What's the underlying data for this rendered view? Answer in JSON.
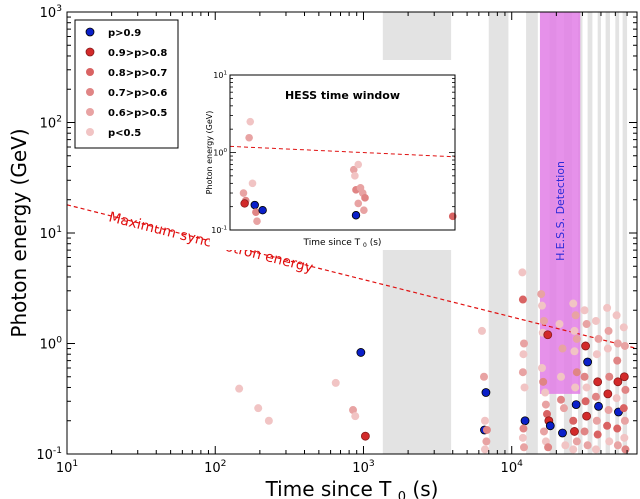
{
  "chart_data": {
    "type": "scatter",
    "xlabel": "Time since T",
    "xlabel_sub": "0",
    "xlabel_unit": "(s)",
    "ylabel": "Photon energy (GeV)",
    "xscale": "log",
    "yscale": "log",
    "xlim": [
      10,
      70000
    ],
    "ylim": [
      0.1,
      1000
    ],
    "x_ticks": [
      {
        "base": "10",
        "exp": "1"
      },
      {
        "base": "10",
        "exp": "2"
      },
      {
        "base": "10",
        "exp": "3"
      },
      {
        "base": "10",
        "exp": "4"
      }
    ],
    "y_ticks": [
      {
        "base": "10",
        "exp": "-1"
      },
      {
        "base": "10",
        "exp": "0"
      },
      {
        "base": "10",
        "exp": "1"
      },
      {
        "base": "10",
        "exp": "2"
      },
      {
        "base": "10",
        "exp": "3"
      }
    ],
    "legend": {
      "position": "top-left",
      "entries": [
        {
          "label": "p>0.9",
          "color": "#0a1fc9"
        },
        {
          "label": "0.9>p>0.8",
          "color": "#d22a2a"
        },
        {
          "label": "0.8>p>0.7",
          "color": "#d96363"
        },
        {
          "label": "0.7>p>0.6",
          "color": "#e08585"
        },
        {
          "label": "0.6>p>0.5",
          "color": "#e8a3a3"
        },
        {
          "label": "p<0.5",
          "color": "#f1c4c4"
        }
      ]
    },
    "max_sync_line": {
      "label": "Maximum synchrotron energy",
      "color": "#e01010",
      "points": [
        [
          10,
          18
        ],
        [
          70000,
          0.9
        ]
      ]
    },
    "shaded_windows": [
      [
        1350,
        3900
      ],
      [
        7000,
        9500
      ],
      [
        12500,
        15000
      ],
      [
        18000,
        20000
      ],
      [
        22500,
        25500
      ],
      [
        28000,
        30000
      ],
      [
        32500,
        35000
      ],
      [
        38000,
        40000
      ],
      [
        43000,
        46000
      ],
      [
        50000,
        53000
      ],
      [
        56000,
        60000
      ]
    ],
    "hess_detection": {
      "label": "H.E.S.S. Detection",
      "x_range": [
        15500,
        29000
      ],
      "y_range": [
        0.35,
        1000
      ],
      "color": "#e27ee6"
    },
    "points": [
      {
        "x": 145,
        "y": 0.39,
        "c": 5
      },
      {
        "x": 195,
        "y": 0.26,
        "c": 5
      },
      {
        "x": 230,
        "y": 0.2,
        "c": 5
      },
      {
        "x": 650,
        "y": 0.44,
        "c": 5
      },
      {
        "x": 850,
        "y": 0.25,
        "c": 4
      },
      {
        "x": 880,
        "y": 0.22,
        "c": 5
      },
      {
        "x": 960,
        "y": 0.83,
        "c": 0
      },
      {
        "x": 1030,
        "y": 0.145,
        "c": 1
      },
      {
        "x": 6300,
        "y": 1.3,
        "c": 5
      },
      {
        "x": 6500,
        "y": 0.5,
        "c": 4
      },
      {
        "x": 6700,
        "y": 0.36,
        "c": 0
      },
      {
        "x": 6600,
        "y": 0.2,
        "c": 5
      },
      {
        "x": 6550,
        "y": 0.165,
        "c": 0
      },
      {
        "x": 6800,
        "y": 0.165,
        "c": 3
      },
      {
        "x": 6750,
        "y": 0.13,
        "c": 4
      },
      {
        "x": 6600,
        "y": 0.11,
        "c": 5
      },
      {
        "x": 11800,
        "y": 4.4,
        "c": 5
      },
      {
        "x": 11900,
        "y": 2.5,
        "c": 2
      },
      {
        "x": 12100,
        "y": 1.0,
        "c": 4
      },
      {
        "x": 12000,
        "y": 0.8,
        "c": 5
      },
      {
        "x": 11900,
        "y": 0.55,
        "c": 4
      },
      {
        "x": 12200,
        "y": 0.4,
        "c": 5
      },
      {
        "x": 12300,
        "y": 0.2,
        "c": 0
      },
      {
        "x": 12000,
        "y": 0.17,
        "c": 3
      },
      {
        "x": 11900,
        "y": 0.14,
        "c": 5
      },
      {
        "x": 12100,
        "y": 0.115,
        "c": 4
      },
      {
        "x": 15800,
        "y": 2.8,
        "c": 4
      },
      {
        "x": 16000,
        "y": 2.2,
        "c": 5
      },
      {
        "x": 16500,
        "y": 1.6,
        "c": 4
      },
      {
        "x": 16200,
        "y": 1.25,
        "c": 5
      },
      {
        "x": 17500,
        "y": 1.2,
        "c": 1
      },
      {
        "x": 16000,
        "y": 0.6,
        "c": 5
      },
      {
        "x": 16300,
        "y": 0.45,
        "c": 3
      },
      {
        "x": 16800,
        "y": 0.36,
        "c": 5
      },
      {
        "x": 17000,
        "y": 0.28,
        "c": 4
      },
      {
        "x": 17300,
        "y": 0.23,
        "c": 2
      },
      {
        "x": 17800,
        "y": 0.2,
        "c": 1
      },
      {
        "x": 18200,
        "y": 0.18,
        "c": 0
      },
      {
        "x": 16500,
        "y": 0.16,
        "c": 4
      },
      {
        "x": 17000,
        "y": 0.13,
        "c": 5
      },
      {
        "x": 17600,
        "y": 0.115,
        "c": 3
      },
      {
        "x": 21000,
        "y": 1.5,
        "c": 5
      },
      {
        "x": 22000,
        "y": 0.9,
        "c": 4
      },
      {
        "x": 21500,
        "y": 0.5,
        "c": 5
      },
      {
        "x": 21500,
        "y": 0.31,
        "c": 3
      },
      {
        "x": 22500,
        "y": 0.26,
        "c": 4
      },
      {
        "x": 22000,
        "y": 0.155,
        "c": 0
      },
      {
        "x": 23000,
        "y": 0.12,
        "c": 5
      },
      {
        "x": 26000,
        "y": 2.3,
        "c": 5
      },
      {
        "x": 27000,
        "y": 1.8,
        "c": 4
      },
      {
        "x": 26500,
        "y": 1.3,
        "c": 5
      },
      {
        "x": 27500,
        "y": 1.1,
        "c": 4
      },
      {
        "x": 26500,
        "y": 0.85,
        "c": 5
      },
      {
        "x": 27500,
        "y": 0.55,
        "c": 3
      },
      {
        "x": 26800,
        "y": 0.4,
        "c": 5
      },
      {
        "x": 27200,
        "y": 0.28,
        "c": 0
      },
      {
        "x": 26000,
        "y": 0.2,
        "c": 2
      },
      {
        "x": 26500,
        "y": 0.16,
        "c": 1
      },
      {
        "x": 27500,
        "y": 0.13,
        "c": 4
      },
      {
        "x": 26000,
        "y": 0.11,
        "c": 5
      },
      {
        "x": 31000,
        "y": 2.0,
        "c": 5
      },
      {
        "x": 32000,
        "y": 1.5,
        "c": 4
      },
      {
        "x": 31500,
        "y": 0.95,
        "c": 1
      },
      {
        "x": 32500,
        "y": 0.68,
        "c": 0
      },
      {
        "x": 31000,
        "y": 0.5,
        "c": 3
      },
      {
        "x": 32000,
        "y": 0.4,
        "c": 5
      },
      {
        "x": 31500,
        "y": 0.3,
        "c": 2
      },
      {
        "x": 32000,
        "y": 0.22,
        "c": 1
      },
      {
        "x": 31000,
        "y": 0.16,
        "c": 3
      },
      {
        "x": 32500,
        "y": 0.12,
        "c": 4
      },
      {
        "x": 37000,
        "y": 1.6,
        "c": 5
      },
      {
        "x": 38500,
        "y": 1.1,
        "c": 4
      },
      {
        "x": 37500,
        "y": 0.8,
        "c": 5
      },
      {
        "x": 38000,
        "y": 0.45,
        "c": 1
      },
      {
        "x": 37000,
        "y": 0.33,
        "c": 3
      },
      {
        "x": 38500,
        "y": 0.27,
        "c": 0
      },
      {
        "x": 37500,
        "y": 0.2,
        "c": 4
      },
      {
        "x": 38000,
        "y": 0.15,
        "c": 2
      },
      {
        "x": 37000,
        "y": 0.11,
        "c": 5
      },
      {
        "x": 44000,
        "y": 2.1,
        "c": 5
      },
      {
        "x": 45000,
        "y": 1.3,
        "c": 4
      },
      {
        "x": 44500,
        "y": 0.9,
        "c": 5
      },
      {
        "x": 45500,
        "y": 0.5,
        "c": 3
      },
      {
        "x": 44500,
        "y": 0.35,
        "c": 1
      },
      {
        "x": 45000,
        "y": 0.25,
        "c": 4
      },
      {
        "x": 44000,
        "y": 0.18,
        "c": 2
      },
      {
        "x": 45500,
        "y": 0.13,
        "c": 5
      },
      {
        "x": 51000,
        "y": 1.8,
        "c": 5
      },
      {
        "x": 52000,
        "y": 1.0,
        "c": 4
      },
      {
        "x": 51500,
        "y": 0.7,
        "c": 3
      },
      {
        "x": 52000,
        "y": 0.45,
        "c": 1
      },
      {
        "x": 51000,
        "y": 0.32,
        "c": 5
      },
      {
        "x": 52500,
        "y": 0.24,
        "c": 0
      },
      {
        "x": 51500,
        "y": 0.17,
        "c": 2
      },
      {
        "x": 52000,
        "y": 0.12,
        "c": 4
      },
      {
        "x": 57000,
        "y": 1.4,
        "c": 5
      },
      {
        "x": 58000,
        "y": 0.95,
        "c": 4
      },
      {
        "x": 57500,
        "y": 0.5,
        "c": 1
      },
      {
        "x": 58500,
        "y": 0.38,
        "c": 3
      },
      {
        "x": 57000,
        "y": 0.26,
        "c": 2
      },
      {
        "x": 58000,
        "y": 0.2,
        "c": 4
      },
      {
        "x": 57500,
        "y": 0.14,
        "c": 5
      },
      {
        "x": 58500,
        "y": 0.11,
        "c": 3
      }
    ],
    "inset": {
      "title": "HESS time window",
      "xlabel": "Time since T",
      "xlabel_sub": "0",
      "xlabel_unit": "(s)",
      "ylabel": "Photon energy (GeV)",
      "xscale": "linear",
      "yscale": "log",
      "xlim": [
        0,
        100
      ],
      "ylim": [
        0.1,
        10
      ],
      "y_ticks": [
        {
          "base": "10",
          "exp": "-1"
        },
        {
          "base": "10",
          "exp": "0"
        },
        {
          "base": "10",
          "exp": "1"
        }
      ],
      "max_sync_line": {
        "points": [
          [
            0,
            1.2
          ],
          [
            100,
            0.88
          ]
        ]
      },
      "points": [
        {
          "x": 6,
          "y": 0.3,
          "c": 4
        },
        {
          "x": 7,
          "y": 0.24,
          "c": 3
        },
        {
          "x": 6.5,
          "y": 0.22,
          "c": 1
        },
        {
          "x": 9,
          "y": 2.5,
          "c": 5
        },
        {
          "x": 8.5,
          "y": 1.55,
          "c": 4
        },
        {
          "x": 10,
          "y": 0.4,
          "c": 5
        },
        {
          "x": 11,
          "y": 0.21,
          "c": 0
        },
        {
          "x": 11.5,
          "y": 0.17,
          "c": 3
        },
        {
          "x": 12,
          "y": 0.13,
          "c": 4
        },
        {
          "x": 14.5,
          "y": 0.18,
          "c": 0
        },
        {
          "x": 55,
          "y": 0.6,
          "c": 4
        },
        {
          "x": 57,
          "y": 0.7,
          "c": 5
        },
        {
          "x": 55.5,
          "y": 0.5,
          "c": 5
        },
        {
          "x": 56,
          "y": 0.33,
          "c": 3
        },
        {
          "x": 58,
          "y": 0.35,
          "c": 4
        },
        {
          "x": 59,
          "y": 0.3,
          "c": 4
        },
        {
          "x": 60,
          "y": 0.26,
          "c": 3
        },
        {
          "x": 57,
          "y": 0.22,
          "c": 4
        },
        {
          "x": 59.5,
          "y": 0.18,
          "c": 4
        },
        {
          "x": 56,
          "y": 0.155,
          "c": 0
        },
        {
          "x": 99,
          "y": 0.15,
          "c": 2
        }
      ]
    }
  }
}
